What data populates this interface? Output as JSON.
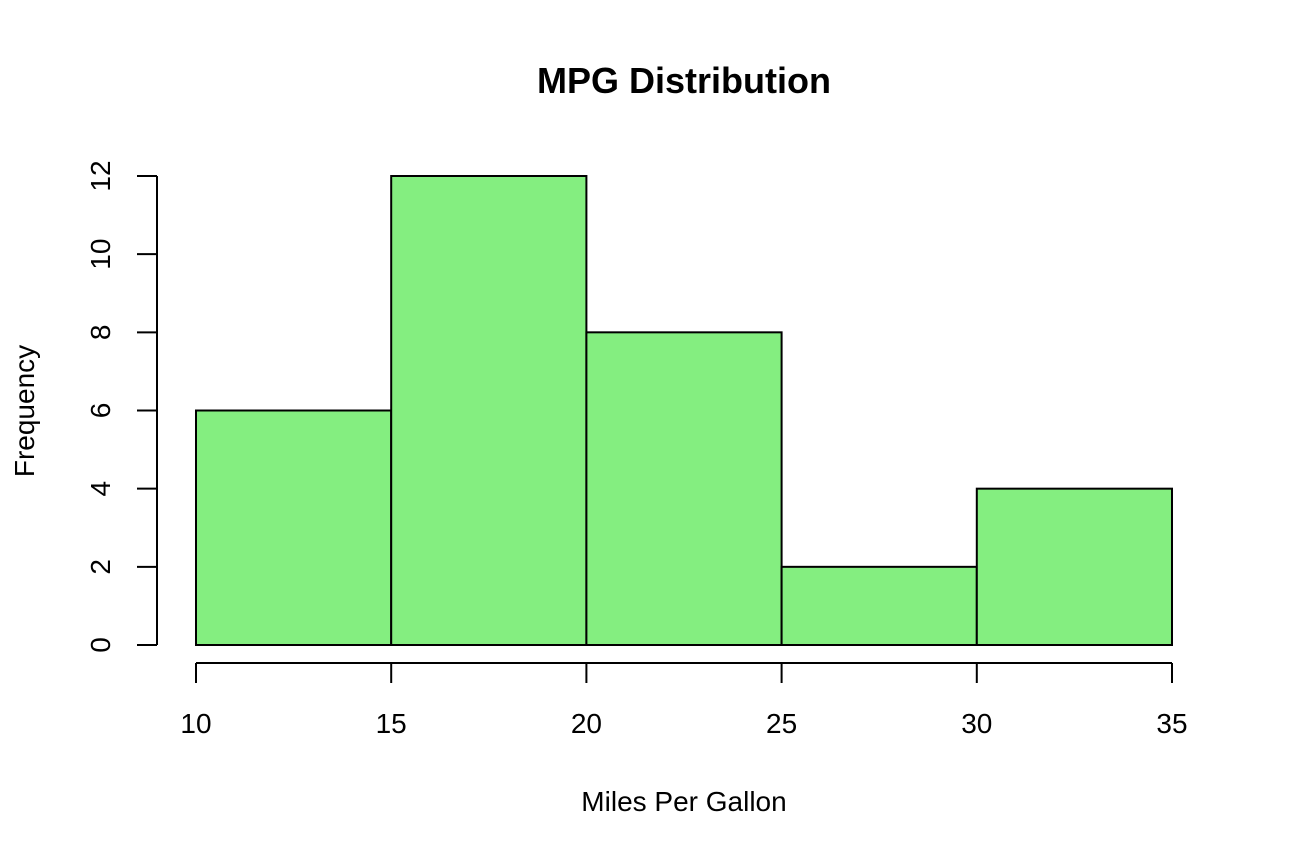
{
  "chart_data": {
    "type": "bar",
    "subtype": "histogram",
    "title": "MPG Distribution",
    "xlabel": "Miles Per Gallon",
    "ylabel": "Frequency",
    "bins": [
      {
        "start": 10,
        "end": 15,
        "count": 6
      },
      {
        "start": 15,
        "end": 20,
        "count": 12
      },
      {
        "start": 20,
        "end": 25,
        "count": 8
      },
      {
        "start": 25,
        "end": 30,
        "count": 2
      },
      {
        "start": 30,
        "end": 35,
        "count": 4
      }
    ],
    "xlim": [
      10,
      35
    ],
    "ylim": [
      0,
      12
    ],
    "xticks": [
      10,
      15,
      20,
      25,
      30,
      35
    ],
    "yticks": [
      0,
      2,
      4,
      6,
      8,
      10,
      12
    ],
    "xtick_labels": [
      "10",
      "15",
      "20",
      "25",
      "30",
      "35"
    ],
    "ytick_labels": [
      "0",
      "2",
      "4",
      "6",
      "8",
      "10",
      "12"
    ],
    "grid": false,
    "legend": false,
    "bar_color": "#84ee80",
    "edge_color": "#000000"
  }
}
